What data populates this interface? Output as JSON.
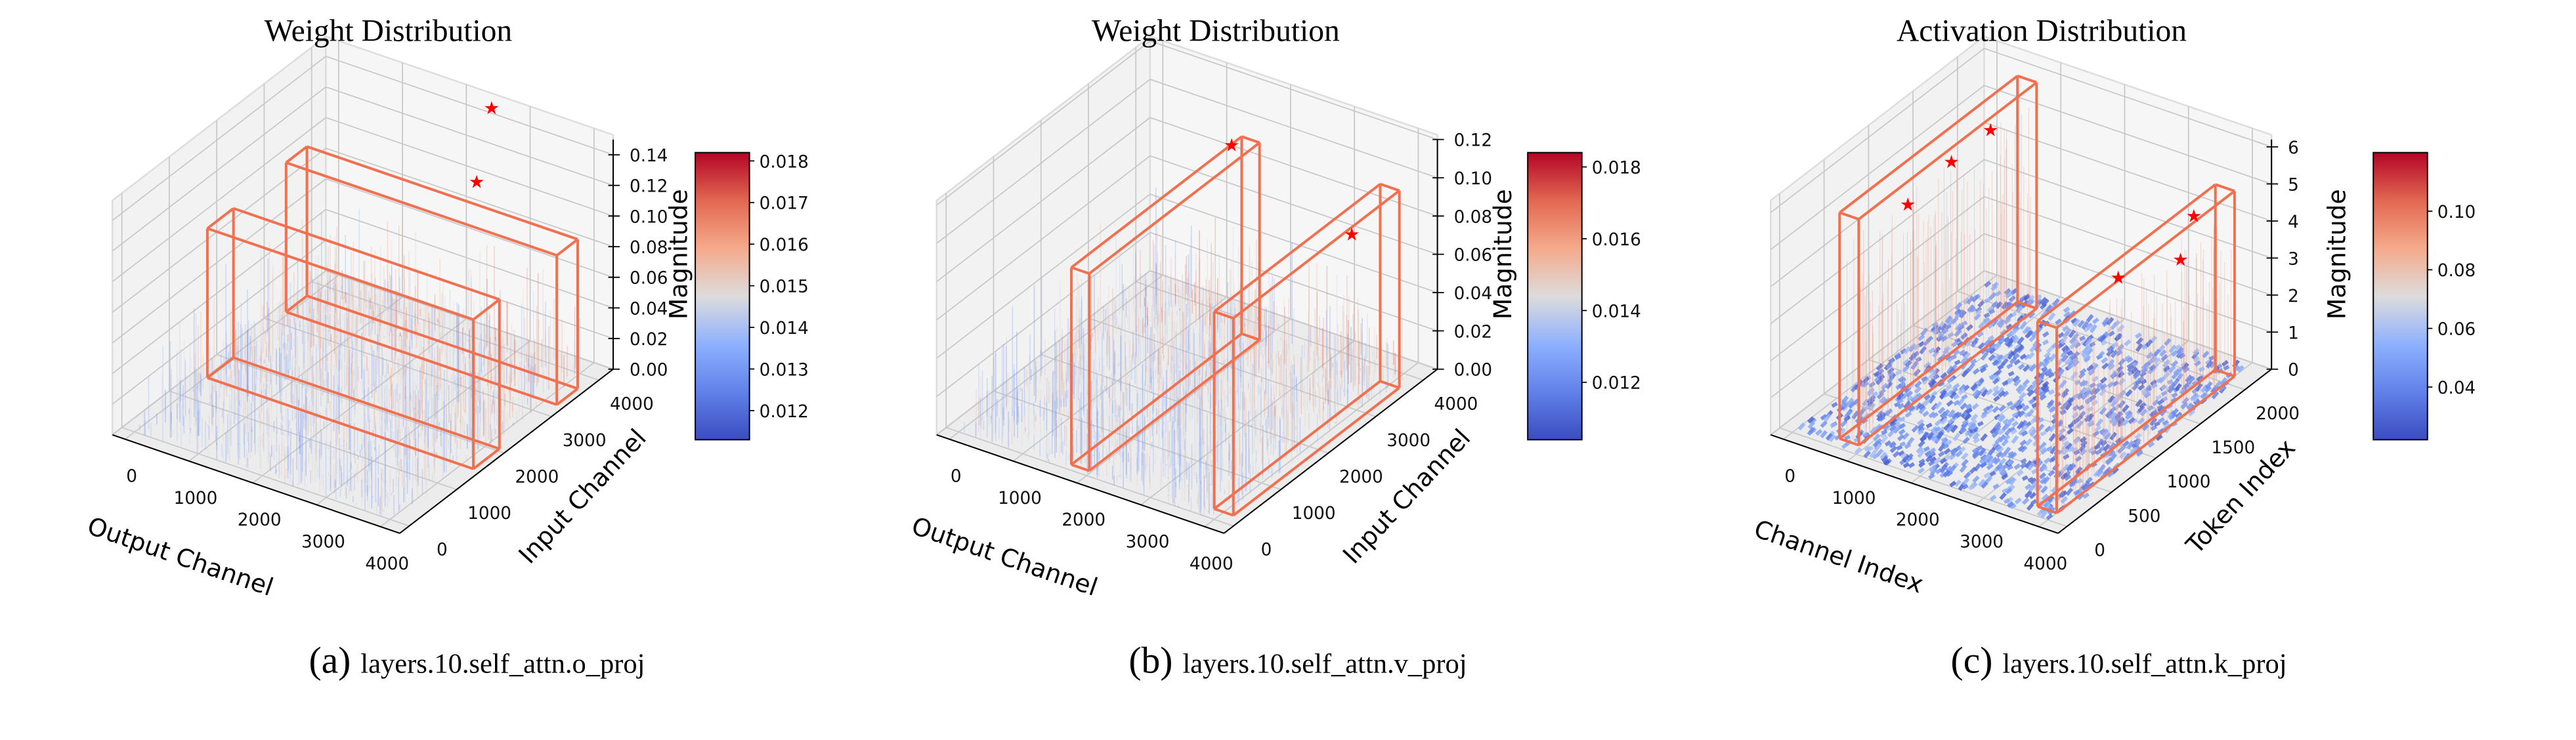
{
  "chart_data": [
    {
      "type": "3d-surface",
      "title": "Weight Distribution",
      "caption_label": "(a)",
      "caption_text": "layers.10.self_attn.o_proj",
      "xlabel": "Output Channel",
      "ylabel": "Input Channel",
      "zlabel": "Magnitude",
      "xlim": [
        -200,
        4300
      ],
      "ylim": [
        -200,
        4300
      ],
      "zlim": [
        0,
        0.15
      ],
      "xticks": [
        "0",
        "1000",
        "2000",
        "3000",
        "4000"
      ],
      "yticks": [
        "0",
        "1000",
        "2000",
        "3000",
        "4000"
      ],
      "zticks": [
        "0.00",
        "0.02",
        "0.04",
        "0.06",
        "0.08",
        "0.10",
        "0.12",
        "0.14"
      ],
      "colorbar": {
        "range": [
          0.0113,
          0.0182
        ],
        "ticks": [
          "0.012",
          "0.013",
          "0.014",
          "0.015",
          "0.016",
          "0.017",
          "0.018"
        ]
      },
      "highlight_boxes": [
        {
          "x": [
            25,
            4190
          ],
          "y": [
            1500,
            2050
          ],
          "z": [
            0,
            0.0975
          ]
        },
        {
          "x": [
            -50,
            4190
          ],
          "y": [
            3260,
            3700
          ],
          "z": [
            0,
            0.0975
          ]
        }
      ],
      "outlier_stars": [
        {
          "x": 2830,
          "y": 3400,
          "z": 0.123
        },
        {
          "x": 2730,
          "y": 3850,
          "z": 0.159
        }
      ],
      "box_color": "#f07050",
      "star_color": "#ff0000"
    },
    {
      "type": "3d-surface",
      "title": "Weight Distribution",
      "caption_label": "(b)",
      "caption_text": "layers.10.self_attn.v_proj",
      "xlabel": "Output Channel",
      "ylabel": "Input Channel",
      "zlabel": "Magnitude",
      "xlim": [
        -200,
        4300
      ],
      "ylim": [
        -200,
        4300
      ],
      "zlim": [
        0,
        0.12
      ],
      "xticks": [
        "0",
        "1000",
        "2000",
        "3000",
        "4000"
      ],
      "yticks": [
        "0",
        "1000",
        "2000",
        "3000",
        "4000"
      ],
      "zticks": [
        "0.00",
        "0.02",
        "0.04",
        "0.06",
        "0.08",
        "0.10",
        "0.12"
      ],
      "colorbar": {
        "range": [
          0.0104,
          0.0184
        ],
        "ticks": [
          "0.012",
          "0.014",
          "0.016",
          "0.018"
        ]
      },
      "highlight_boxes": [
        {
          "x": [
            1680,
            1960
          ],
          "y": [
            110,
            3700
          ],
          "z": [
            0,
            0.103
          ]
        },
        {
          "x": [
            3850,
            4150
          ],
          "y": [
            200,
            3700
          ],
          "z": [
            0,
            0.103
          ]
        }
      ],
      "outlier_stars": [
        {
          "x": 1820,
          "y": 3300,
          "z": 0.108
        },
        {
          "x": 4000,
          "y": 2900,
          "z": 0.094
        }
      ],
      "box_color": "#f07050",
      "star_color": "#ff0000"
    },
    {
      "type": "3d-surface",
      "title": "Activation Distribution",
      "caption_label": "(c)",
      "caption_text": "layers.10.self_attn.k_proj",
      "xlabel": "Channel Index",
      "ylabel": "Token Index",
      "zlabel": "Magnitude",
      "xlim": [
        -200,
        4300
      ],
      "ylim": [
        -100,
        2300
      ],
      "zlim": [
        0,
        6.2
      ],
      "xticks": [
        "0",
        "1000",
        "2000",
        "3000",
        "4000"
      ],
      "yticks": [
        "0",
        "500",
        "1000",
        "1500",
        "2000"
      ],
      "zticks": [
        "0",
        "1",
        "2",
        "3",
        "4",
        "5",
        "6"
      ],
      "colorbar": {
        "range": [
          0.022,
          0.12
        ],
        "ticks": [
          "0.04",
          "0.06",
          "0.08",
          "0.10"
        ]
      },
      "highlight_boxes": [
        {
          "x": [
            600,
            900
          ],
          "y": [
            100,
            2100
          ],
          "z": [
            0,
            6.1
          ]
        },
        {
          "x": [
            3700,
            4000
          ],
          "y": [
            100,
            2100
          ],
          "z": [
            0,
            5.0
          ]
        }
      ],
      "outlier_stars": [
        {
          "x": 750,
          "y": 760,
          "z": 5.2
        },
        {
          "x": 750,
          "y": 1250,
          "z": 5.45
        },
        {
          "x": 750,
          "y": 1690,
          "z": 5.5
        },
        {
          "x": 3850,
          "y": 900,
          "z": 4.8
        },
        {
          "x": 3850,
          "y": 1600,
          "z": 4.0
        },
        {
          "x": 3850,
          "y": 1750,
          "z": 4.9
        }
      ],
      "box_color": "#f07050",
      "star_color": "#ff0000"
    }
  ]
}
